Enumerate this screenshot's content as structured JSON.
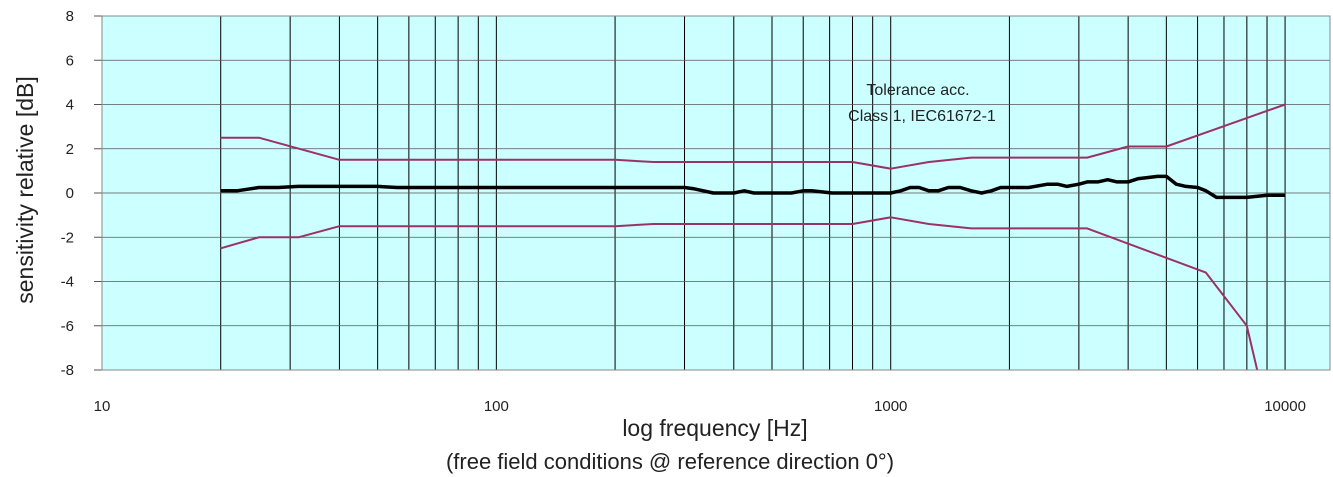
{
  "chart_data": {
    "type": "line",
    "xscale": "log",
    "xlim": [
      10,
      13000
    ],
    "ylim": [
      -8,
      8
    ],
    "xticks": [
      10,
      100,
      1000,
      10000
    ],
    "yticks": [
      -8,
      -6,
      -4,
      -2,
      0,
      2,
      4,
      6,
      8
    ],
    "xlabel": "log frequency [Hz]",
    "xnote": "(free field conditions @ reference direction 0°)",
    "ylabel": "sensitivity relative [dB]",
    "annotation": [
      "Tolerance acc.",
      "Class 1, IEC61672-1"
    ],
    "colors": {
      "background": "#ccffff",
      "grid": "#000000",
      "response": "#000000",
      "tolerance": "#993366"
    },
    "series": [
      {
        "role": "response",
        "x": [
          20,
          22,
          25,
          28,
          31.5,
          35,
          40,
          45,
          50,
          56,
          63,
          71,
          80,
          100,
          125,
          160,
          200,
          250,
          300,
          315,
          355,
          400,
          425,
          450,
          500,
          560,
          600,
          630,
          710,
          800,
          900,
          1000,
          1060,
          1120,
          1180,
          1250,
          1320,
          1400,
          1500,
          1600,
          1700,
          1800,
          1900,
          2000,
          2240,
          2500,
          2650,
          2800,
          3000,
          3150,
          3350,
          3550,
          3750,
          4000,
          4250,
          4500,
          4750,
          5000,
          5300,
          5600,
          6000,
          6300,
          6700,
          7100,
          8000,
          9000,
          10000
        ],
        "y": [
          0.1,
          0.1,
          0.25,
          0.25,
          0.3,
          0.3,
          0.3,
          0.3,
          0.3,
          0.25,
          0.25,
          0.25,
          0.25,
          0.25,
          0.25,
          0.25,
          0.25,
          0.25,
          0.25,
          0.2,
          0.0,
          0.0,
          0.1,
          0.0,
          0.0,
          0.0,
          0.1,
          0.1,
          0.0,
          0.0,
          0.0,
          0.0,
          0.1,
          0.25,
          0.25,
          0.1,
          0.1,
          0.25,
          0.25,
          0.1,
          0.0,
          0.1,
          0.25,
          0.25,
          0.25,
          0.4,
          0.4,
          0.3,
          0.4,
          0.5,
          0.5,
          0.6,
          0.5,
          0.5,
          0.65,
          0.7,
          0.75,
          0.75,
          0.4,
          0.3,
          0.25,
          0.1,
          -0.2,
          -0.2,
          -0.2,
          -0.1,
          -0.1
        ]
      },
      {
        "role": "tolerance-upper",
        "x": [
          20,
          25,
          40,
          200,
          250,
          800,
          1000,
          1250,
          1600,
          3150,
          4000,
          5000,
          10000
        ],
        "y": [
          2.5,
          2.5,
          1.5,
          1.5,
          1.4,
          1.4,
          1.1,
          1.4,
          1.6,
          1.6,
          2.1,
          2.1,
          4.0
        ]
      },
      {
        "role": "tolerance-lower",
        "x": [
          20,
          25,
          31.5,
          40,
          200,
          250,
          800,
          1000,
          1250,
          1600,
          3150,
          6300,
          8000,
          8500
        ],
        "y": [
          -2.5,
          -2.0,
          -2.0,
          -1.5,
          -1.5,
          -1.4,
          -1.4,
          -1.1,
          -1.4,
          -1.6,
          -1.6,
          -3.6,
          -6.0,
          -8.0
        ]
      }
    ]
  }
}
